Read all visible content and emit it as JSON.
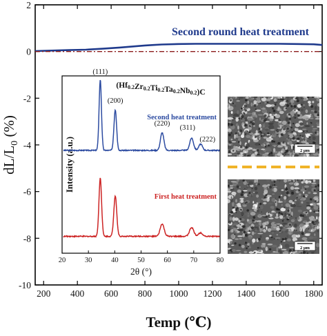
{
  "chart_data": [
    {
      "id": "main",
      "type": "line",
      "title": "",
      "xlabel": "Temp (℃)",
      "ylabel_parts": {
        "pre": "dL/L",
        "sub": "0",
        "post": " (%)"
      },
      "xlim": [
        150,
        1850
      ],
      "ylim": [
        -10,
        2
      ],
      "xticks": [
        200,
        400,
        600,
        800,
        1000,
        1200,
        1400,
        1600,
        1800
      ],
      "yticks": [
        -10,
        -8,
        -6,
        -4,
        -2,
        0,
        2
      ],
      "annotation": "Second round heat treatment",
      "colors": {
        "curve": "#1f3a8c",
        "reference": "#8b1a1a",
        "annotation": "#1f3a8c"
      },
      "series": [
        {
          "style": "solid",
          "x": [
            150,
            250,
            350,
            450,
            550,
            650,
            700,
            750,
            800,
            850,
            900,
            1000,
            1100,
            1200,
            1300,
            1400,
            1500,
            1600,
            1700,
            1800,
            1850
          ],
          "y": [
            0.02,
            0.04,
            0.06,
            0.08,
            0.12,
            0.17,
            0.2,
            0.23,
            0.26,
            0.28,
            0.3,
            0.32,
            0.33,
            0.33,
            0.33,
            0.33,
            0.33,
            0.33,
            0.32,
            0.31,
            0.28
          ]
        },
        {
          "style": "dash-dot",
          "x": [
            150,
            1850
          ],
          "y": [
            0,
            0
          ]
        }
      ]
    },
    {
      "id": "inset-xrd",
      "type": "line",
      "title_html": "(Hf<sub>0.2</sub>Zr<sub>0.2</sub>Ti<sub>0.2</sub>Ta<sub>0.2</sub>Nb<sub>0.2</sub>)C",
      "xlabel": "2θ (°)",
      "ylabel": "Intensity (a.u.)",
      "xlim": [
        20,
        80
      ],
      "xticks": [
        20,
        30,
        40,
        50,
        60,
        70,
        80
      ],
      "peaks": [
        {
          "label": "(111)",
          "two_theta": 34.5
        },
        {
          "label": "(200)",
          "two_theta": 40.2
        },
        {
          "label": "(220)",
          "two_theta": 58.0
        },
        {
          "label": "(311)",
          "two_theta": 69.2
        },
        {
          "label": "(222)",
          "two_theta": 72.6
        }
      ],
      "series": [
        {
          "name": "Second heat treatment",
          "color": "#2b4aa0",
          "baseline": 0.58,
          "peak_heights": [
            0.4,
            0.23,
            0.1,
            0.07,
            0.035
          ],
          "widths": [
            0.45,
            0.5,
            0.65,
            0.7,
            0.7
          ]
        },
        {
          "name": "First heat treatment",
          "color": "#cc2222",
          "baseline": 0.095,
          "peak_heights": [
            0.33,
            0.23,
            0.07,
            0.05,
            0.02
          ],
          "widths": [
            0.5,
            0.55,
            0.75,
            0.8,
            0.8
          ]
        }
      ]
    }
  ],
  "sem_images": [
    {
      "scale_label": "2 μm"
    },
    {
      "scale_label": "2 μm"
    }
  ],
  "divider_color": "#f0b429"
}
